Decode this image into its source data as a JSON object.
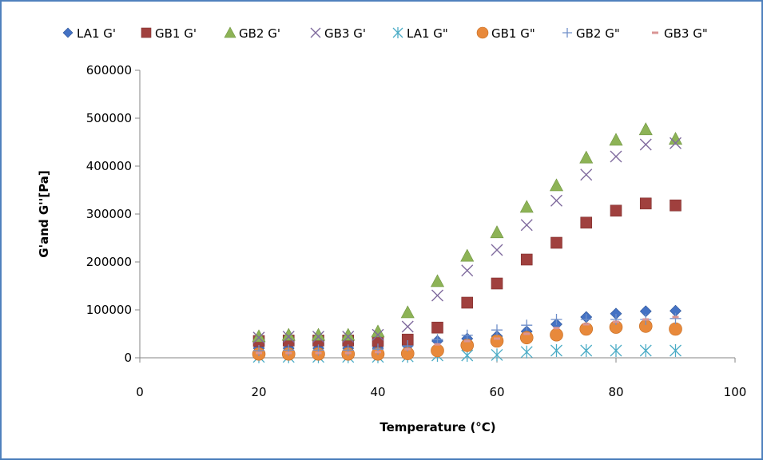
{
  "chart_data": {
    "type": "scatter",
    "title": "",
    "xlabel": "Temperature (°C)",
    "ylabel": "G'and G''[Pa]",
    "xlim": [
      0,
      100
    ],
    "ylim": [
      0,
      600000
    ],
    "x_ticks": [
      0,
      20,
      40,
      60,
      80,
      100
    ],
    "y_ticks": [
      0,
      100000,
      200000,
      300000,
      400000,
      500000,
      600000
    ],
    "grid": false,
    "legend_position": "top",
    "x": [
      20,
      25,
      30,
      35,
      40,
      45,
      50,
      55,
      60,
      65,
      70,
      75,
      80,
      85,
      90
    ],
    "series": [
      {
        "name": "LA1  G'",
        "marker": "diamond",
        "color": "#4472C4",
        "values": [
          20000,
          20000,
          20000,
          20000,
          20000,
          25000,
          35000,
          40000,
          45000,
          55000,
          70000,
          85000,
          92000,
          97000,
          98000
        ]
      },
      {
        "name": "GB1 G'",
        "marker": "square",
        "color": "#A0403E",
        "values": [
          35000,
          36000,
          36000,
          36000,
          35000,
          38000,
          63000,
          115000,
          155000,
          205000,
          240000,
          282000,
          307000,
          322000,
          318000
        ]
      },
      {
        "name": "GB2 G'",
        "marker": "triangle",
        "color": "#8DB356",
        "values": [
          45000,
          48000,
          48000,
          48000,
          55000,
          95000,
          160000,
          213000,
          262000,
          315000,
          360000,
          418000,
          455000,
          477000,
          457000
        ]
      },
      {
        "name": "GB3 G'",
        "marker": "x",
        "color": "#7F6A9D",
        "values": [
          42000,
          44000,
          44000,
          44000,
          48000,
          65000,
          130000,
          182000,
          225000,
          277000,
          328000,
          382000,
          420000,
          445000,
          448000
        ]
      },
      {
        "name": "LA1  G\"",
        "marker": "asterisk",
        "color": "#4BACC6",
        "values": [
          2000,
          2000,
          2000,
          2000,
          2000,
          3000,
          5000,
          5000,
          6000,
          12000,
          15000,
          15000,
          15000,
          15000,
          15000
        ]
      },
      {
        "name": "GB1 G\"",
        "marker": "circle",
        "color": "#E8893B",
        "values": [
          8000,
          8000,
          8000,
          8000,
          8000,
          9000,
          15000,
          26000,
          35000,
          42000,
          48000,
          60000,
          64000,
          66000,
          60000
        ]
      },
      {
        "name": "GB2 G\"",
        "marker": "plus",
        "color": "#6F8FC9",
        "values": [
          15000,
          16000,
          16000,
          16000,
          18000,
          25000,
          38000,
          47000,
          58000,
          68000,
          80000,
          80000,
          80000,
          80000,
          82000
        ]
      },
      {
        "name": "GB3 G\"",
        "marker": "dash",
        "color": "#D99594",
        "values": [
          10000,
          10000,
          10000,
          10000,
          12000,
          18000,
          28000,
          35000,
          40000,
          50000,
          62000,
          70000,
          75000,
          80000,
          85000
        ]
      }
    ]
  }
}
